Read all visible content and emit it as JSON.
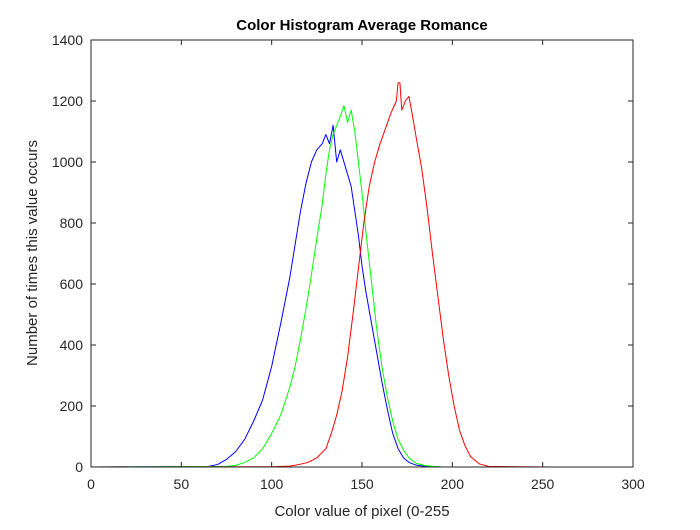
{
  "chart_data": {
    "type": "line",
    "title": "Color Histogram Average Romance",
    "xlabel": "Color value of pixel (0-255",
    "ylabel": "Number of times this value occurs",
    "xlim": [
      0,
      300
    ],
    "ylim": [
      0,
      1400
    ],
    "xticks": [
      0,
      50,
      100,
      150,
      200,
      250,
      300
    ],
    "yticks": [
      0,
      200,
      400,
      600,
      800,
      1000,
      1200,
      1400
    ],
    "grid": false,
    "legend": "none",
    "series": [
      {
        "color": "#0000ff",
        "x": [
          0,
          65,
          70,
          75,
          80,
          85,
          90,
          95,
          100,
          105,
          110,
          113,
          116,
          119,
          122,
          125,
          128,
          130,
          132,
          134,
          136,
          138,
          140,
          142,
          144,
          146,
          148,
          150,
          152,
          155,
          158,
          161,
          164,
          167,
          170,
          173,
          176,
          180,
          185,
          190,
          195,
          200,
          205,
          255
        ],
        "y": [
          0,
          2,
          8,
          25,
          50,
          90,
          150,
          220,
          330,
          470,
          620,
          730,
          840,
          930,
          1000,
          1040,
          1060,
          1090,
          1060,
          1120,
          1000,
          1040,
          1000,
          960,
          920,
          840,
          760,
          660,
          580,
          480,
          380,
          280,
          190,
          110,
          60,
          30,
          15,
          6,
          2,
          1,
          0,
          0,
          0,
          0
        ]
      },
      {
        "color": "#00ff00",
        "x": [
          0,
          75,
          80,
          85,
          90,
          95,
          100,
          105,
          110,
          113,
          116,
          119,
          122,
          125,
          128,
          130,
          132,
          134,
          136,
          138,
          140,
          142,
          144,
          146,
          148,
          150,
          152,
          155,
          158,
          161,
          164,
          167,
          170,
          173,
          176,
          180,
          185,
          190,
          195,
          200,
          210,
          255
        ],
        "y": [
          0,
          2,
          5,
          15,
          30,
          60,
          110,
          170,
          260,
          330,
          420,
          520,
          630,
          750,
          860,
          960,
          1040,
          1090,
          1120,
          1150,
          1185,
          1130,
          1170,
          1100,
          1000,
          900,
          780,
          620,
          460,
          330,
          230,
          150,
          90,
          55,
          30,
          12,
          5,
          2,
          0,
          0,
          0,
          0
        ]
      },
      {
        "color": "#ff0000",
        "x": [
          0,
          100,
          110,
          115,
          120,
          125,
          130,
          133,
          136,
          139,
          142,
          145,
          148,
          151,
          154,
          157,
          160,
          163,
          166,
          169,
          170,
          171,
          172,
          174,
          176,
          178,
          180,
          183,
          186,
          189,
          192,
          195,
          198,
          201,
          204,
          207,
          210,
          215,
          220,
          255
        ],
        "y": [
          0,
          1,
          3,
          8,
          15,
          30,
          60,
          110,
          170,
          250,
          360,
          500,
          650,
          800,
          920,
          1000,
          1060,
          1110,
          1160,
          1200,
          1260,
          1260,
          1170,
          1200,
          1215,
          1150,
          1080,
          980,
          850,
          700,
          560,
          420,
          300,
          200,
          120,
          70,
          35,
          10,
          2,
          0
        ]
      }
    ]
  }
}
